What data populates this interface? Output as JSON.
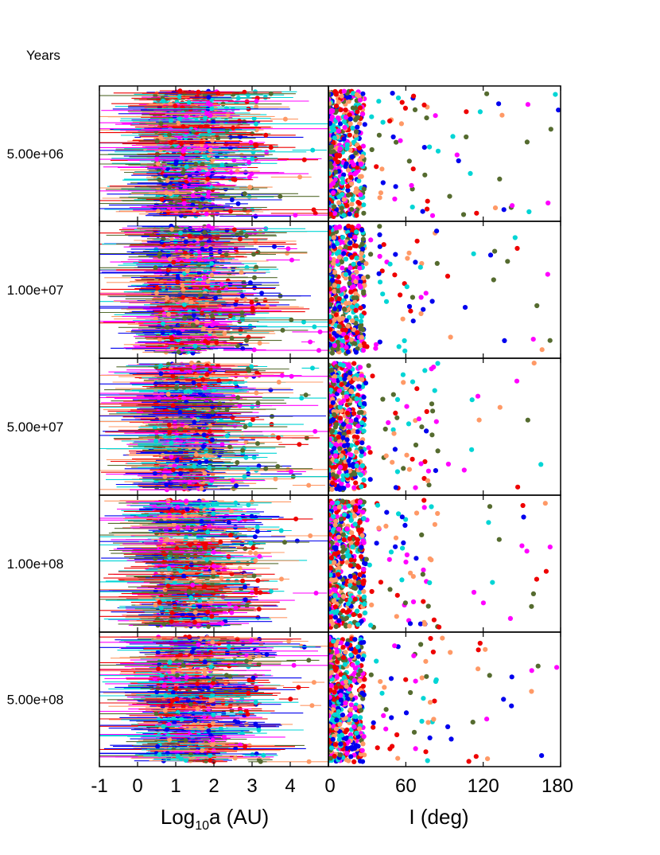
{
  "chart_data": {
    "type": "scatter",
    "title": "",
    "corner_label": "Years",
    "rows": [
      {
        "label": "5.00e+06"
      },
      {
        "label": "1.00e+07"
      },
      {
        "label": "5.00e+07"
      },
      {
        "label": "1.00e+08"
      },
      {
        "label": "5.00e+08"
      }
    ],
    "colors": [
      "#0000ee",
      "#ee0000",
      "#ff00ff",
      "#00d5d5",
      "#ff9966",
      "#556b2f"
    ],
    "panels": [
      {
        "id": "semimajor-axis",
        "xlabel_main": "Log",
        "xlabel_sub": "10",
        "xlabel_rest": "a (AU)",
        "xlim": [
          -1,
          5
        ],
        "xticks": [
          "-1",
          "0",
          "1",
          "2",
          "3",
          "4"
        ],
        "xtick_values": [
          -1,
          0,
          1,
          2,
          3,
          4
        ],
        "markers": "points with horizontal range bars",
        "bulk_range": [
          0.4,
          2.0
        ],
        "tail_max": 5.0
      },
      {
        "id": "inclination",
        "xlabel": "I (deg)",
        "xlim": [
          0,
          180
        ],
        "xticks": [
          "0",
          "60",
          "120",
          "180"
        ],
        "xtick_values": [
          0,
          60,
          120,
          180
        ],
        "markers": "points",
        "bulk_range": [
          0,
          25
        ],
        "tail_max": 180
      }
    ],
    "points_per_row": 620,
    "grid": false,
    "legend": "none"
  }
}
